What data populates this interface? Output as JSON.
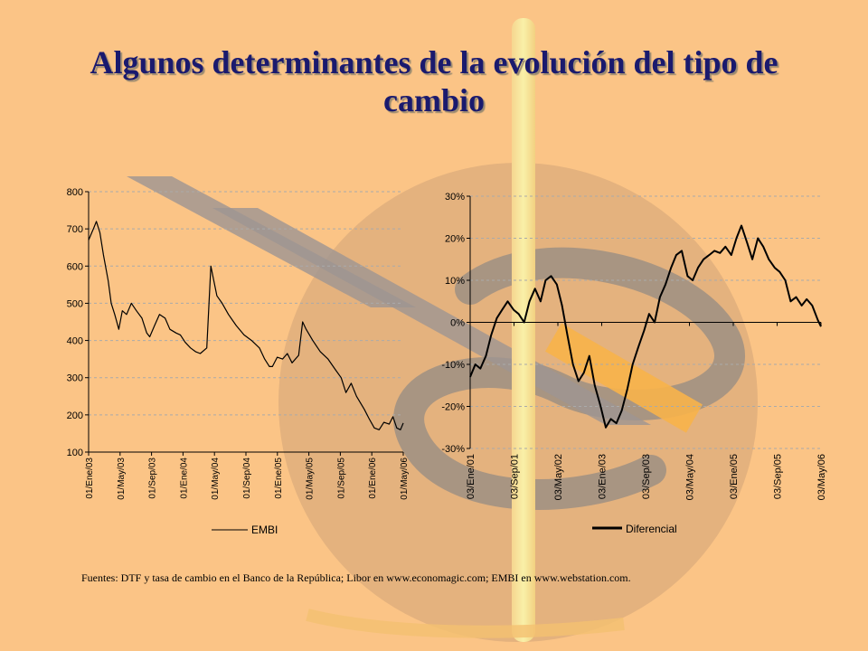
{
  "slide": {
    "title": "Algunos determinantes de la evolución del tipo de cambio",
    "source_note": "Fuentes: DTF y tasa de cambio en el Banco de la República; Libor en www.economagic.com; EMBI en www.webstation.com."
  },
  "chart_data": [
    {
      "type": "line",
      "id": "embi",
      "x_tick_labels": [
        "01/Ene/03",
        "01/May/03",
        "01/Sep/03",
        "01/Ene/04",
        "01/May/04",
        "01/Sep/04",
        "01/Ene/05",
        "01/May/05",
        "01/Sep/05",
        "01/Ene/06",
        "01/May/06"
      ],
      "ylim": [
        100,
        800
      ],
      "y_ticks": [
        100,
        200,
        300,
        400,
        500,
        600,
        700,
        800
      ],
      "grid": true,
      "legend_position": "bottom",
      "series": [
        {
          "name": "EMBI",
          "color": "#000000",
          "points": [
            [
              "2003-01-01",
              670
            ],
            [
              "2003-01-20",
              700
            ],
            [
              "2003-02-01",
              720
            ],
            [
              "2003-02-15",
              690
            ],
            [
              "2003-03-01",
              630
            ],
            [
              "2003-03-20",
              560
            ],
            [
              "2003-04-01",
              500
            ],
            [
              "2003-04-15",
              470
            ],
            [
              "2003-05-01",
              430
            ],
            [
              "2003-05-15",
              480
            ],
            [
              "2003-06-01",
              470
            ],
            [
              "2003-06-20",
              500
            ],
            [
              "2003-07-10",
              480
            ],
            [
              "2003-08-01",
              460
            ],
            [
              "2003-08-20",
              420
            ],
            [
              "2003-09-01",
              410
            ],
            [
              "2003-09-20",
              440
            ],
            [
              "2003-10-10",
              470
            ],
            [
              "2003-11-01",
              460
            ],
            [
              "2003-11-20",
              430
            ],
            [
              "2003-12-15",
              420
            ],
            [
              "2004-01-01",
              415
            ],
            [
              "2004-01-20",
              395
            ],
            [
              "2004-02-10",
              380
            ],
            [
              "2004-03-01",
              370
            ],
            [
              "2004-03-20",
              365
            ],
            [
              "2004-04-15",
              380
            ],
            [
              "2004-05-01",
              600
            ],
            [
              "2004-05-10",
              570
            ],
            [
              "2004-05-25",
              520
            ],
            [
              "2004-06-15",
              500
            ],
            [
              "2004-07-10",
              470
            ],
            [
              "2004-08-10",
              440
            ],
            [
              "2004-09-10",
              415
            ],
            [
              "2004-10-10",
              400
            ],
            [
              "2004-11-10",
              380
            ],
            [
              "2004-12-01",
              350
            ],
            [
              "2004-12-20",
              330
            ],
            [
              "2005-01-01",
              330
            ],
            [
              "2005-01-20",
              355
            ],
            [
              "2005-02-10",
              350
            ],
            [
              "2005-03-01",
              365
            ],
            [
              "2005-03-20",
              340
            ],
            [
              "2005-04-15",
              360
            ],
            [
              "2005-05-01",
              450
            ],
            [
              "2005-05-15",
              430
            ],
            [
              "2005-06-10",
              400
            ],
            [
              "2005-07-10",
              370
            ],
            [
              "2005-08-10",
              350
            ],
            [
              "2005-09-10",
              320
            ],
            [
              "2005-10-01",
              300
            ],
            [
              "2005-10-20",
              260
            ],
            [
              "2005-11-10",
              285
            ],
            [
              "2005-12-01",
              250
            ],
            [
              "2006-01-01",
              215
            ],
            [
              "2006-01-20",
              190
            ],
            [
              "2006-02-10",
              165
            ],
            [
              "2006-03-01",
              160
            ],
            [
              "2006-03-20",
              180
            ],
            [
              "2006-04-10",
              175
            ],
            [
              "2006-04-25",
              195
            ],
            [
              "2006-05-10",
              165
            ],
            [
              "2006-05-25",
              160
            ],
            [
              "2006-06-05",
              178
            ]
          ]
        }
      ]
    },
    {
      "type": "line",
      "id": "diferencial",
      "x_tick_labels": [
        "03/Ene/01",
        "03/Sep/01",
        "03/May/02",
        "03/Ene/03",
        "03/Sep/03",
        "03/May/04",
        "03/Ene/05",
        "03/Sep/05",
        "03/May/06"
      ],
      "ylim": [
        -0.3,
        0.3
      ],
      "y_ticks": [
        -0.3,
        -0.2,
        -0.1,
        0.0,
        0.1,
        0.2,
        0.3
      ],
      "y_tick_labels": [
        "-30%",
        "-20%",
        "-10%",
        "0%",
        "10%",
        "20%",
        "30%"
      ],
      "grid": true,
      "legend_position": "bottom",
      "series": [
        {
          "name": "Diferencial",
          "color": "#000000",
          "points": [
            [
              "2001-01-03",
              -0.13
            ],
            [
              "2001-02-01",
              -0.1
            ],
            [
              "2001-03-01",
              -0.11
            ],
            [
              "2001-04-01",
              -0.08
            ],
            [
              "2001-05-01",
              -0.03
            ],
            [
              "2001-06-01",
              0.01
            ],
            [
              "2001-07-01",
              0.03
            ],
            [
              "2001-08-01",
              0.05
            ],
            [
              "2001-09-03",
              0.03
            ],
            [
              "2001-10-01",
              0.02
            ],
            [
              "2001-11-01",
              0.0
            ],
            [
              "2001-12-01",
              0.05
            ],
            [
              "2002-01-01",
              0.08
            ],
            [
              "2002-02-01",
              0.05
            ],
            [
              "2002-03-01",
              0.1
            ],
            [
              "2002-04-01",
              0.11
            ],
            [
              "2002-05-03",
              0.09
            ],
            [
              "2002-06-01",
              0.04
            ],
            [
              "2002-07-01",
              -0.03
            ],
            [
              "2002-08-01",
              -0.1
            ],
            [
              "2002-09-01",
              -0.14
            ],
            [
              "2002-10-01",
              -0.12
            ],
            [
              "2002-11-01",
              -0.08
            ],
            [
              "2002-12-01",
              -0.15
            ],
            [
              "2003-01-03",
              -0.2
            ],
            [
              "2003-02-01",
              -0.25
            ],
            [
              "2003-03-01",
              -0.23
            ],
            [
              "2003-04-01",
              -0.24
            ],
            [
              "2003-05-01",
              -0.21
            ],
            [
              "2003-06-01",
              -0.16
            ],
            [
              "2003-07-01",
              -0.1
            ],
            [
              "2003-08-01",
              -0.06
            ],
            [
              "2003-09-03",
              -0.02
            ],
            [
              "2003-10-01",
              0.02
            ],
            [
              "2003-11-01",
              0.0
            ],
            [
              "2003-12-01",
              0.06
            ],
            [
              "2004-01-01",
              0.09
            ],
            [
              "2004-02-01",
              0.13
            ],
            [
              "2004-03-01",
              0.16
            ],
            [
              "2004-04-01",
              0.17
            ],
            [
              "2004-05-03",
              0.11
            ],
            [
              "2004-06-01",
              0.1
            ],
            [
              "2004-07-01",
              0.13
            ],
            [
              "2004-08-01",
              0.15
            ],
            [
              "2004-09-01",
              0.16
            ],
            [
              "2004-10-01",
              0.17
            ],
            [
              "2004-11-01",
              0.165
            ],
            [
              "2004-12-01",
              0.18
            ],
            [
              "2005-01-03",
              0.16
            ],
            [
              "2005-02-01",
              0.2
            ],
            [
              "2005-03-01",
              0.23
            ],
            [
              "2005-04-01",
              0.19
            ],
            [
              "2005-05-01",
              0.15
            ],
            [
              "2005-06-01",
              0.2
            ],
            [
              "2005-07-01",
              0.18
            ],
            [
              "2005-08-01",
              0.15
            ],
            [
              "2005-09-03",
              0.13
            ],
            [
              "2005-10-01",
              0.12
            ],
            [
              "2005-11-01",
              0.1
            ],
            [
              "2005-12-01",
              0.05
            ],
            [
              "2006-01-01",
              0.06
            ],
            [
              "2006-02-01",
              0.04
            ],
            [
              "2006-03-01",
              0.055
            ],
            [
              "2006-04-01",
              0.04
            ],
            [
              "2006-05-03",
              0.005
            ],
            [
              "2006-05-20",
              -0.01
            ]
          ]
        }
      ]
    }
  ]
}
